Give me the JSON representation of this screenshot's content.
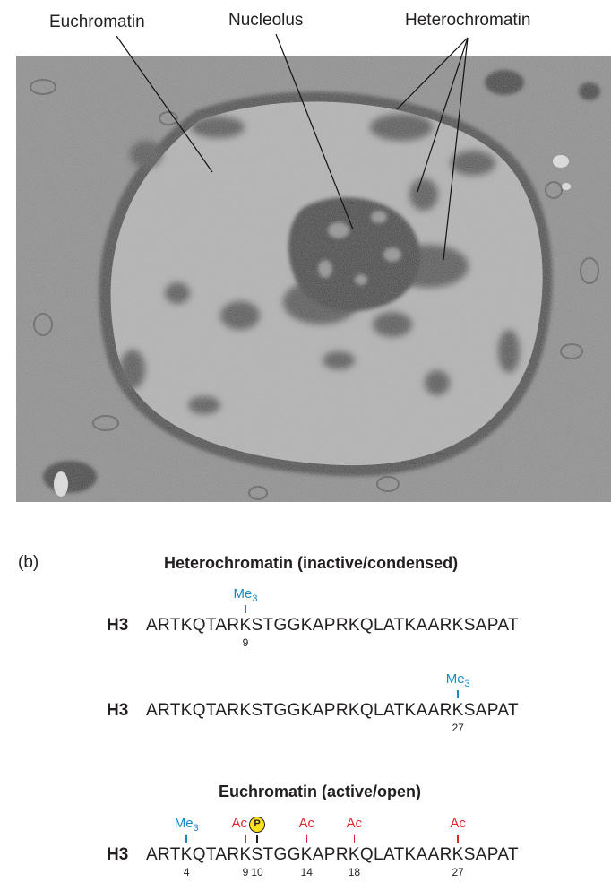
{
  "micrograph": {
    "labels": {
      "euchromatin": "Euchromatin",
      "nucleolus": "Nucleolus",
      "heterochromatin": "Heterochromatin"
    }
  },
  "panel_b": {
    "panel_label": "(b)",
    "heterochromatin_heading": "Heterochromatin (inactive/condensed)",
    "euchromatin_heading": "Euchromatin (active/open)",
    "histone": "H3",
    "sequence": "ARTKQTARKSTGGKAPRKQLATKAARKSAPAT",
    "rows": [
      {
        "marks": [
          {
            "text": "Me3",
            "type": "methyl",
            "residue": "9"
          }
        ]
      },
      {
        "marks": [
          {
            "text": "Me3",
            "type": "methyl",
            "residue": "27"
          }
        ]
      },
      {
        "marks": [
          {
            "text": "Me3",
            "type": "methyl",
            "residue": "4"
          },
          {
            "text": "Ac",
            "type": "acetyl",
            "residue": "9"
          },
          {
            "text": "P",
            "type": "phospho",
            "residue": "10"
          },
          {
            "text": "Ac",
            "type": "acetyl",
            "residue": "14"
          },
          {
            "text": "Ac",
            "type": "acetyl",
            "residue": "18"
          },
          {
            "text": "Ac",
            "type": "acetyl",
            "residue": "27"
          }
        ]
      }
    ],
    "colors": {
      "methyl": "#1a8ac2",
      "acetyl": "#e0252d",
      "phospho": "#ffe11a"
    }
  }
}
